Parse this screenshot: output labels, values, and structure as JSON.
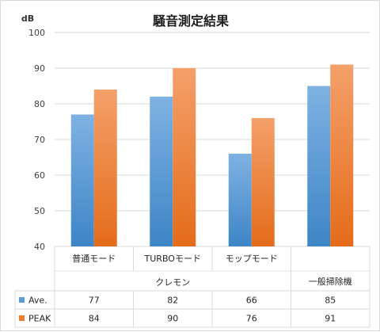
{
  "chart_data": {
    "type": "bar",
    "title": "騒音測定結果",
    "ylabel": "dB",
    "ylim": [
      40,
      100
    ],
    "yticks": [
      40,
      50,
      60,
      70,
      80,
      90,
      100
    ],
    "grid": true,
    "categories": [
      "普通モード",
      "TURBOモード",
      "モップモード",
      ""
    ],
    "groups": [
      {
        "label": "クレモン",
        "span": 3
      },
      {
        "label": "一般掃除機",
        "span": 1
      }
    ],
    "series": [
      {
        "name": "Ave.",
        "color": "#5b9bd5",
        "values": [
          77,
          82,
          66,
          85
        ]
      },
      {
        "name": "PEAK",
        "color": "#ed7d31",
        "values": [
          84,
          90,
          76,
          91
        ]
      }
    ]
  }
}
